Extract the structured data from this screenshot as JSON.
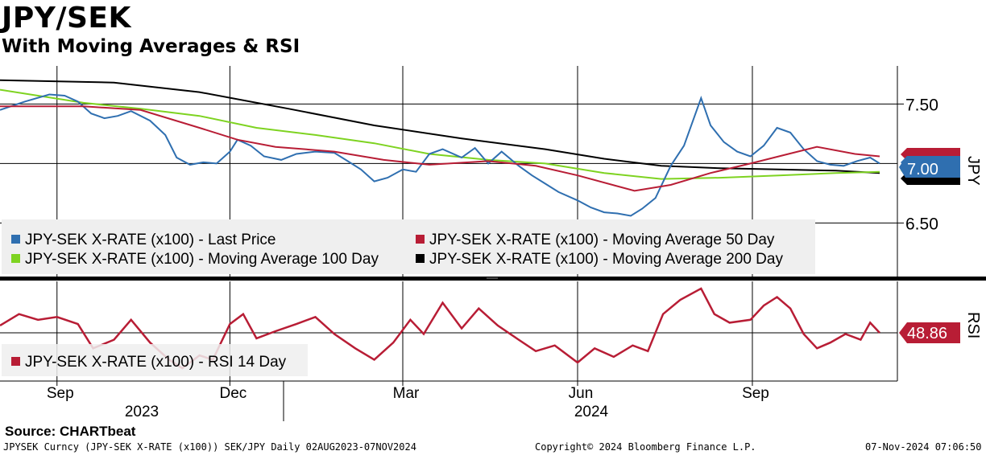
{
  "header": {
    "title": "JPY/SEK",
    "subtitle": "With Moving Averages & RSI",
    "source": "Source: CHARTbeat"
  },
  "footer": {
    "left": "JPYSEK Curncy (JPY-SEK X-RATE  (x100)) SEK/JPY  Daily 02AUG2023-07NOV2024",
    "center": "Copyright© 2024 Bloomberg Finance L.P.",
    "right": "07-Nov-2024 07:06:50"
  },
  "colors": {
    "price": "#2f6fb0",
    "ma50": "#b81d35",
    "ma100": "#7ed321",
    "ma200": "#000000",
    "rsi": "#b81d35",
    "legend_bg": "#efefef"
  },
  "chart_data": [
    {
      "type": "line",
      "panel": "price",
      "x_axis": {
        "months": [
          {
            "label": "Sep",
            "date": "2023-09-01"
          },
          {
            "label": "Dec",
            "date": "2023-12-01"
          },
          {
            "label": "Mar",
            "date": "2024-03-01"
          },
          {
            "label": "Jun",
            "date": "2024-06-01"
          },
          {
            "label": "Sep",
            "date": "2024-09-01"
          }
        ],
        "years": [
          {
            "label": "2023",
            "date": "2023-10-15"
          },
          {
            "label": "2024",
            "date": "2024-06-15"
          }
        ],
        "range": [
          "2023-08-02",
          "2024-11-07"
        ]
      },
      "y_axis": {
        "ticks": [
          {
            "label": "7.50",
            "value": 7.5
          },
          {
            "label": "6.50",
            "value": 6.5
          }
        ],
        "range": [
          6.05,
          7.82
        ],
        "title": "JPY"
      },
      "last_value_label": "7.00",
      "end_markers": [
        {
          "series": "ma50",
          "value": 7.06
        },
        {
          "series": "price",
          "value": 7.0
        },
        {
          "series": "ma100",
          "value": 6.93
        },
        {
          "series": "ma200",
          "value": 6.92
        }
      ],
      "legend": [
        {
          "name": "JPY-SEK X-RATE (x100) - Last Price",
          "series": "price"
        },
        {
          "name": "JPY-SEK X-RATE (x100) - Moving Average 50 Day",
          "series": "ma50"
        },
        {
          "name": "JPY-SEK X-RATE (x100) - Moving Average 100 Day",
          "series": "ma100"
        },
        {
          "name": "JPY-SEK X-RATE (x100) - Moving Average 200 Day",
          "series": "ma200"
        }
      ],
      "series": {
        "price": [
          [
            "2023-08-02",
            7.45
          ],
          [
            "2023-08-15",
            7.52
          ],
          [
            "2023-08-28",
            7.58
          ],
          [
            "2023-09-05",
            7.57
          ],
          [
            "2023-09-12",
            7.52
          ],
          [
            "2023-09-19",
            7.42
          ],
          [
            "2023-09-26",
            7.38
          ],
          [
            "2023-10-03",
            7.4
          ],
          [
            "2023-10-10",
            7.44
          ],
          [
            "2023-10-20",
            7.36
          ],
          [
            "2023-10-28",
            7.24
          ],
          [
            "2023-11-03",
            7.05
          ],
          [
            "2023-11-10",
            6.99
          ],
          [
            "2023-11-17",
            7.01
          ],
          [
            "2023-11-24",
            7.0
          ],
          [
            "2023-12-01",
            7.1
          ],
          [
            "2023-12-05",
            7.2
          ],
          [
            "2023-12-12",
            7.15
          ],
          [
            "2023-12-19",
            7.06
          ],
          [
            "2023-12-28",
            7.03
          ],
          [
            "2024-01-05",
            7.08
          ],
          [
            "2024-01-15",
            7.1
          ],
          [
            "2024-01-25",
            7.09
          ],
          [
            "2024-02-01",
            7.02
          ],
          [
            "2024-02-08",
            6.95
          ],
          [
            "2024-02-15",
            6.85
          ],
          [
            "2024-02-22",
            6.88
          ],
          [
            "2024-03-01",
            6.95
          ],
          [
            "2024-03-08",
            6.93
          ],
          [
            "2024-03-15",
            7.08
          ],
          [
            "2024-03-22",
            7.12
          ],
          [
            "2024-04-01",
            7.05
          ],
          [
            "2024-04-08",
            7.13
          ],
          [
            "2024-04-15",
            7.0
          ],
          [
            "2024-04-22",
            7.1
          ],
          [
            "2024-05-01",
            6.98
          ],
          [
            "2024-05-08",
            6.9
          ],
          [
            "2024-05-15",
            6.83
          ],
          [
            "2024-05-22",
            6.76
          ],
          [
            "2024-06-01",
            6.69
          ],
          [
            "2024-06-08",
            6.63
          ],
          [
            "2024-06-15",
            6.59
          ],
          [
            "2024-06-22",
            6.58
          ],
          [
            "2024-06-29",
            6.56
          ],
          [
            "2024-07-05",
            6.62
          ],
          [
            "2024-07-12",
            6.71
          ],
          [
            "2024-07-20",
            6.98
          ],
          [
            "2024-07-27",
            7.15
          ],
          [
            "2024-08-05",
            7.55
          ],
          [
            "2024-08-10",
            7.32
          ],
          [
            "2024-08-17",
            7.18
          ],
          [
            "2024-08-24",
            7.1
          ],
          [
            "2024-08-31",
            7.06
          ],
          [
            "2024-09-07",
            7.15
          ],
          [
            "2024-09-14",
            7.3
          ],
          [
            "2024-09-21",
            7.26
          ],
          [
            "2024-09-28",
            7.12
          ],
          [
            "2024-10-05",
            7.02
          ],
          [
            "2024-10-12",
            6.99
          ],
          [
            "2024-10-19",
            6.98
          ],
          [
            "2024-10-26",
            7.02
          ],
          [
            "2024-11-02",
            7.05
          ],
          [
            "2024-11-07",
            7.0
          ]
        ],
        "ma50": [
          [
            "2023-08-02",
            7.48
          ],
          [
            "2023-09-15",
            7.48
          ],
          [
            "2023-10-15",
            7.45
          ],
          [
            "2023-11-15",
            7.3
          ],
          [
            "2023-12-05",
            7.2
          ],
          [
            "2023-12-25",
            7.14
          ],
          [
            "2024-01-25",
            7.1
          ],
          [
            "2024-02-20",
            7.03
          ],
          [
            "2024-03-15",
            6.99
          ],
          [
            "2024-04-15",
            7.02
          ],
          [
            "2024-05-10",
            6.98
          ],
          [
            "2024-06-01",
            6.9
          ],
          [
            "2024-07-01",
            6.77
          ],
          [
            "2024-07-20",
            6.82
          ],
          [
            "2024-08-10",
            6.92
          ],
          [
            "2024-08-31",
            7.0
          ],
          [
            "2024-09-20",
            7.08
          ],
          [
            "2024-10-05",
            7.14
          ],
          [
            "2024-10-25",
            7.08
          ],
          [
            "2024-11-07",
            7.06
          ]
        ],
        "ma100": [
          [
            "2023-08-02",
            7.62
          ],
          [
            "2023-09-15",
            7.51
          ],
          [
            "2023-10-15",
            7.46
          ],
          [
            "2023-11-15",
            7.4
          ],
          [
            "2023-12-15",
            7.3
          ],
          [
            "2024-01-15",
            7.24
          ],
          [
            "2024-02-15",
            7.17
          ],
          [
            "2024-03-15",
            7.08
          ],
          [
            "2024-04-15",
            7.03
          ],
          [
            "2024-05-15",
            7.0
          ],
          [
            "2024-06-15",
            6.92
          ],
          [
            "2024-07-15",
            6.87
          ],
          [
            "2024-08-15",
            6.88
          ],
          [
            "2024-09-15",
            6.9
          ],
          [
            "2024-10-15",
            6.92
          ],
          [
            "2024-11-07",
            6.93
          ]
        ],
        "ma200": [
          [
            "2023-08-02",
            7.7
          ],
          [
            "2023-10-01",
            7.68
          ],
          [
            "2023-11-15",
            7.6
          ],
          [
            "2024-01-01",
            7.46
          ],
          [
            "2024-02-15",
            7.32
          ],
          [
            "2024-04-01",
            7.21
          ],
          [
            "2024-05-15",
            7.12
          ],
          [
            "2024-06-15",
            7.04
          ],
          [
            "2024-07-15",
            6.98
          ],
          [
            "2024-08-15",
            6.96
          ],
          [
            "2024-09-15",
            6.95
          ],
          [
            "2024-10-15",
            6.94
          ],
          [
            "2024-11-07",
            6.92
          ]
        ]
      }
    },
    {
      "type": "line",
      "panel": "rsi",
      "y_axis": {
        "title": "RSI",
        "range": [
          15,
          85
        ]
      },
      "last_value_label": "48.86",
      "legend": [
        {
          "name": "JPY-SEK X-RATE (x100) - RSI 14 Day",
          "series": "rsi"
        }
      ],
      "series": {
        "rsi": [
          [
            "2023-08-02",
            54
          ],
          [
            "2023-08-12",
            62
          ],
          [
            "2023-08-22",
            58
          ],
          [
            "2023-09-01",
            60
          ],
          [
            "2023-09-12",
            55
          ],
          [
            "2023-09-20",
            38
          ],
          [
            "2023-10-01",
            44
          ],
          [
            "2023-10-10",
            58
          ],
          [
            "2023-10-20",
            42
          ],
          [
            "2023-10-30",
            30
          ],
          [
            "2023-11-06",
            24
          ],
          [
            "2023-11-15",
            33
          ],
          [
            "2023-11-22",
            30
          ],
          [
            "2023-12-01",
            55
          ],
          [
            "2023-12-08",
            62
          ],
          [
            "2023-12-15",
            45
          ],
          [
            "2023-12-25",
            50
          ],
          [
            "2024-01-05",
            55
          ],
          [
            "2024-01-15",
            60
          ],
          [
            "2024-01-25",
            48
          ],
          [
            "2024-02-05",
            38
          ],
          [
            "2024-02-15",
            30
          ],
          [
            "2024-02-25",
            42
          ],
          [
            "2024-03-05",
            58
          ],
          [
            "2024-03-12",
            48
          ],
          [
            "2024-03-22",
            70
          ],
          [
            "2024-04-01",
            52
          ],
          [
            "2024-04-10",
            66
          ],
          [
            "2024-04-20",
            54
          ],
          [
            "2024-05-01",
            44
          ],
          [
            "2024-05-10",
            36
          ],
          [
            "2024-05-20",
            40
          ],
          [
            "2024-06-01",
            28
          ],
          [
            "2024-06-10",
            38
          ],
          [
            "2024-06-20",
            32
          ],
          [
            "2024-06-30",
            40
          ],
          [
            "2024-07-08",
            36
          ],
          [
            "2024-07-16",
            62
          ],
          [
            "2024-07-25",
            72
          ],
          [
            "2024-08-05",
            80
          ],
          [
            "2024-08-12",
            62
          ],
          [
            "2024-08-20",
            56
          ],
          [
            "2024-08-31",
            58
          ],
          [
            "2024-09-07",
            68
          ],
          [
            "2024-09-14",
            74
          ],
          [
            "2024-09-21",
            66
          ],
          [
            "2024-09-28",
            48
          ],
          [
            "2024-10-05",
            38
          ],
          [
            "2024-10-12",
            42
          ],
          [
            "2024-10-20",
            48
          ],
          [
            "2024-10-28",
            44
          ],
          [
            "2024-11-02",
            56
          ],
          [
            "2024-11-07",
            48.86
          ]
        ]
      }
    }
  ]
}
